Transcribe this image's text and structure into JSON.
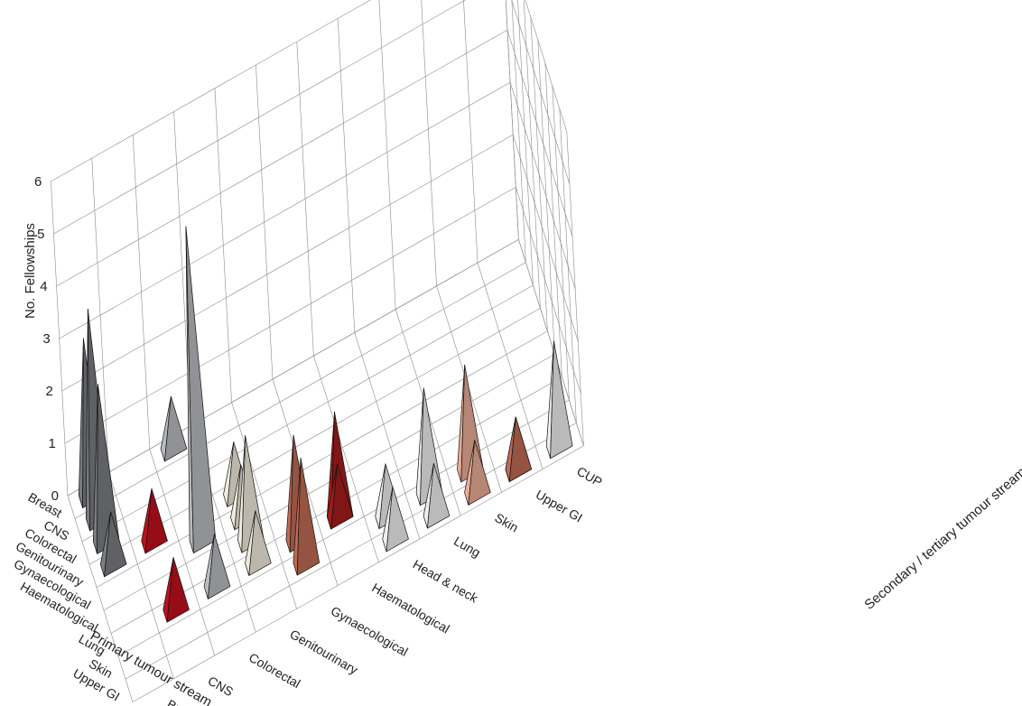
{
  "chart_data": {
    "type": "bar3d-pyramid",
    "title": "",
    "zlabel": "No. Fellowships",
    "xlabel": "Primary tumour stream",
    "ylabel": "Secondary / tertiary tumour stream",
    "zlim": [
      0,
      6
    ],
    "z_ticks": [
      "0",
      "1",
      "2",
      "3",
      "4",
      "5",
      "6"
    ],
    "x_categories": [
      "Breast",
      "CNS",
      "Colorectal",
      "Genitourinary",
      "Gynaecological",
      "Haematological",
      "Lung",
      "Skin",
      "Upper GI"
    ],
    "y_categories": [
      "Breast",
      "CNS",
      "Colorectal",
      "Genitourinary",
      "Gynaecological",
      "Haematological",
      "Head & neck",
      "Lung",
      "Skin",
      "Upper GI",
      "CUP"
    ],
    "grid": true,
    "palette_by_secondary": {
      "Breast": "#7a7c80",
      "CNS": "#c0101e",
      "Colorectal": "#b8bbc0",
      "Genitourinary": "#f1eadc",
      "Gynaecological": "#bf6a55",
      "Haematological": "#a51c1c",
      "Head & neck": "#eeeeef",
      "Lung": "#eeeeef",
      "Skin": "#ebac96",
      "Upper GI": "#bf6a55",
      "CUP": "#eeeeef"
    },
    "points": [
      {
        "x": "Breast",
        "y": "Breast",
        "z": 3
      },
      {
        "x": "Breast",
        "y": "Colorectal",
        "z": 1
      },
      {
        "x": "CNS",
        "y": "Breast",
        "z": 4
      },
      {
        "x": "Colorectal",
        "y": "Breast",
        "z": 3
      },
      {
        "x": "Genitourinary",
        "y": "Breast",
        "z": 1
      },
      {
        "x": "Genitourinary",
        "y": "CNS",
        "z": 1
      },
      {
        "x": "Genitourinary",
        "y": "Genitourinary",
        "z": 1
      },
      {
        "x": "Gynaecological",
        "y": "Colorectal",
        "z": 6
      },
      {
        "x": "Haematological",
        "y": "Genitourinary",
        "z": 2
      },
      {
        "x": "Gynaecological",
        "y": "Genitourinary",
        "z": 1
      },
      {
        "x": "Lung",
        "y": "Gynaecological",
        "z": 2
      },
      {
        "x": "Skin",
        "y": "Gynaecological",
        "z": 2
      },
      {
        "x": "Lung",
        "y": "Haematological",
        "z": 2
      },
      {
        "x": "Skin",
        "y": "Head & neck",
        "z": 1
      },
      {
        "x": "Upper GI",
        "y": "Head & neck",
        "z": 1
      },
      {
        "x": "Skin",
        "y": "Lung",
        "z": 2
      },
      {
        "x": "Skin",
        "y": "Skin",
        "z": 2
      },
      {
        "x": "Lung",
        "y": "CNS",
        "z": 1
      },
      {
        "x": "Lung",
        "y": "Colorectal",
        "z": 1
      },
      {
        "x": "Lung",
        "y": "Genitourinary",
        "z": 1
      },
      {
        "x": "Lung",
        "y": "Haematological",
        "z": 1
      },
      {
        "x": "Upper GI",
        "y": "Lung",
        "z": 1
      },
      {
        "x": "Upper GI",
        "y": "Upper GI",
        "z": 1
      },
      {
        "x": "Upper GI",
        "y": "Upper GI",
        "z": 1
      },
      {
        "x": "Upper GI",
        "y": "CUP",
        "z": 2
      },
      {
        "x": "Upper GI",
        "y": "Skin",
        "z": 1
      }
    ]
  }
}
